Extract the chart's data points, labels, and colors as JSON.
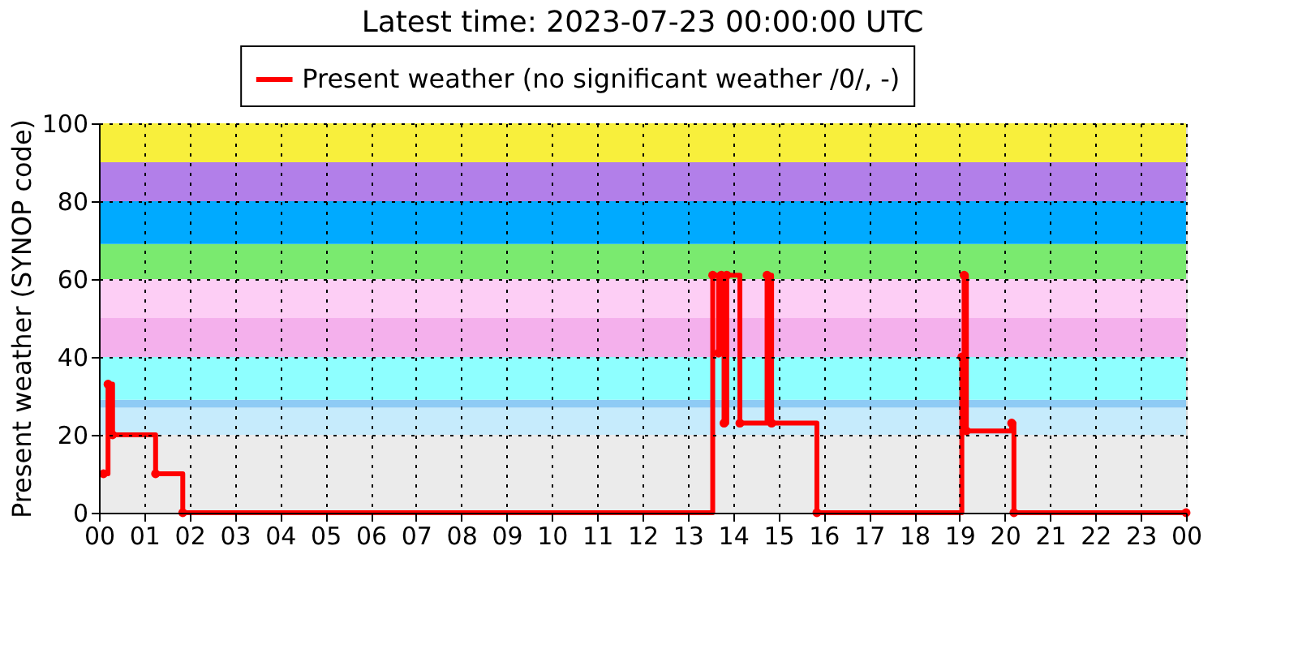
{
  "chart_data": {
    "type": "step",
    "title": "Latest time: 2023-07-23 00:00:00 UTC",
    "ylabel": "Present weather (SYNOP code)",
    "x": [
      0.1,
      0.2,
      0.3,
      1.25,
      1.85,
      13.55,
      13.68,
      13.74,
      13.8,
      13.86,
      14.15,
      14.75,
      14.85,
      15.85,
      19.05,
      19.1,
      19.15,
      20.15,
      20.2,
      24
    ],
    "series": [
      {
        "name": "Present weather (no significant weather /0/, -)",
        "color": "#ff0000",
        "values": [
          10,
          33,
          20,
          10,
          0,
          61,
          41,
          61,
          23,
          61,
          23,
          61,
          23,
          0,
          40,
          61,
          21,
          23,
          0,
          0
        ]
      }
    ],
    "xlim": [
      0,
      24
    ],
    "xticks": [
      {
        "value": 0,
        "label": "00"
      },
      {
        "value": 1,
        "label": "01"
      },
      {
        "value": 2,
        "label": "02"
      },
      {
        "value": 3,
        "label": "03"
      },
      {
        "value": 4,
        "label": "04"
      },
      {
        "value": 5,
        "label": "05"
      },
      {
        "value": 6,
        "label": "06"
      },
      {
        "value": 7,
        "label": "07"
      },
      {
        "value": 8,
        "label": "08"
      },
      {
        "value": 9,
        "label": "09"
      },
      {
        "value": 10,
        "label": "10"
      },
      {
        "value": 11,
        "label": "11"
      },
      {
        "value": 12,
        "label": "12"
      },
      {
        "value": 13,
        "label": "13"
      },
      {
        "value": 14,
        "label": "14"
      },
      {
        "value": 15,
        "label": "15"
      },
      {
        "value": 16,
        "label": "16"
      },
      {
        "value": 17,
        "label": "17"
      },
      {
        "value": 18,
        "label": "18"
      },
      {
        "value": 19,
        "label": "19"
      },
      {
        "value": 20,
        "label": "20"
      },
      {
        "value": 21,
        "label": "21"
      },
      {
        "value": 22,
        "label": "22"
      },
      {
        "value": 23,
        "label": "23"
      },
      {
        "value": 24,
        "label": "00"
      }
    ],
    "ylim": [
      0,
      100
    ],
    "yticks": [
      0,
      20,
      40,
      60,
      80,
      100
    ],
    "bands": [
      {
        "axis": "y",
        "from": 0,
        "to": 20,
        "color": "#ebebeb"
      },
      {
        "axis": "y",
        "from": 20,
        "to": 27,
        "color": "#c6ebfc"
      },
      {
        "axis": "y",
        "from": 27,
        "to": 29,
        "color": "#8ecbf5"
      },
      {
        "axis": "y",
        "from": 29,
        "to": 40,
        "color": "#8effff"
      },
      {
        "axis": "y",
        "from": 40,
        "to": 50,
        "color": "#f4b0ec"
      },
      {
        "axis": "y",
        "from": 50,
        "to": 60,
        "color": "#fdcef5"
      },
      {
        "axis": "y",
        "from": 60,
        "to": 69,
        "color": "#7aea6f"
      },
      {
        "axis": "y",
        "from": 69,
        "to": 80,
        "color": "#00aaff"
      },
      {
        "axis": "y",
        "from": 80,
        "to": 90,
        "color": "#b27fe9"
      },
      {
        "axis": "y",
        "from": 90,
        "to": 100,
        "color": "#f8ef3c"
      }
    ],
    "grid": true,
    "legend": "top",
    "marker": "circle",
    "line_style": "solid"
  }
}
